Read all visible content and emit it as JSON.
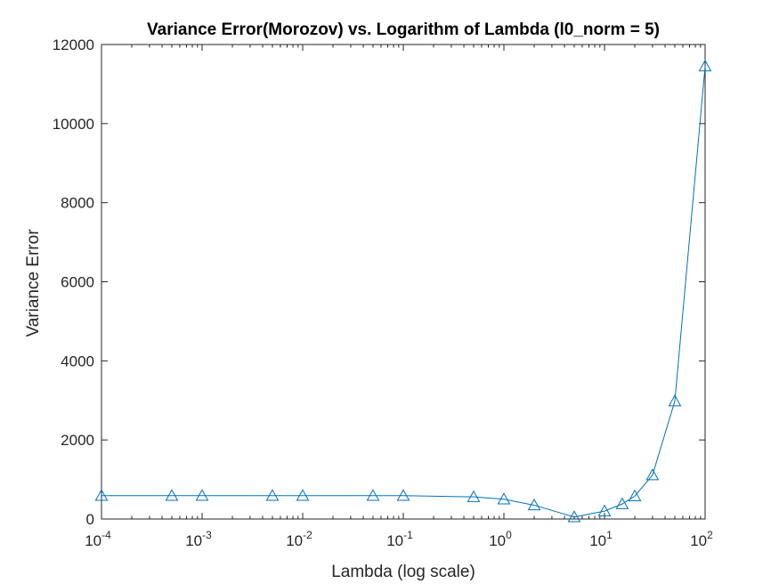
{
  "chart_data": {
    "type": "line",
    "title": "Variance Error(Morozov) vs. Logarithm of Lambda (l0_norm = 5)",
    "xlabel": "Lambda (log scale)",
    "ylabel": "Variance Error",
    "xscale": "log",
    "xlim": [
      0.0001,
      100
    ],
    "ylim": [
      0,
      12000
    ],
    "xticks": [
      0.0001,
      0.001,
      0.01,
      0.1,
      1,
      10,
      100
    ],
    "xtick_labels": [
      {
        "base": "10",
        "exp": "-4"
      },
      {
        "base": "10",
        "exp": "-3"
      },
      {
        "base": "10",
        "exp": "-2"
      },
      {
        "base": "10",
        "exp": "-1"
      },
      {
        "base": "10",
        "exp": "0"
      },
      {
        "base": "10",
        "exp": "1"
      },
      {
        "base": "10",
        "exp": "2"
      }
    ],
    "yticks": [
      0,
      2000,
      4000,
      6000,
      8000,
      10000,
      12000
    ],
    "ytick_labels": [
      "0",
      "2000",
      "4000",
      "6000",
      "8000",
      "10000",
      "12000"
    ],
    "grid": false,
    "marker": "triangle",
    "color": "#0072BD",
    "series": [
      {
        "x": [
          0.0001,
          0.0005,
          0.001,
          0.005,
          0.01,
          0.05,
          0.1,
          0.5,
          1,
          2,
          5,
          10,
          15,
          20,
          30,
          50,
          100
        ],
        "y": [
          590,
          590,
          590,
          590,
          590,
          590,
          590,
          560,
          500,
          350,
          50,
          200,
          380,
          580,
          1110,
          2980,
          11450
        ]
      }
    ]
  }
}
